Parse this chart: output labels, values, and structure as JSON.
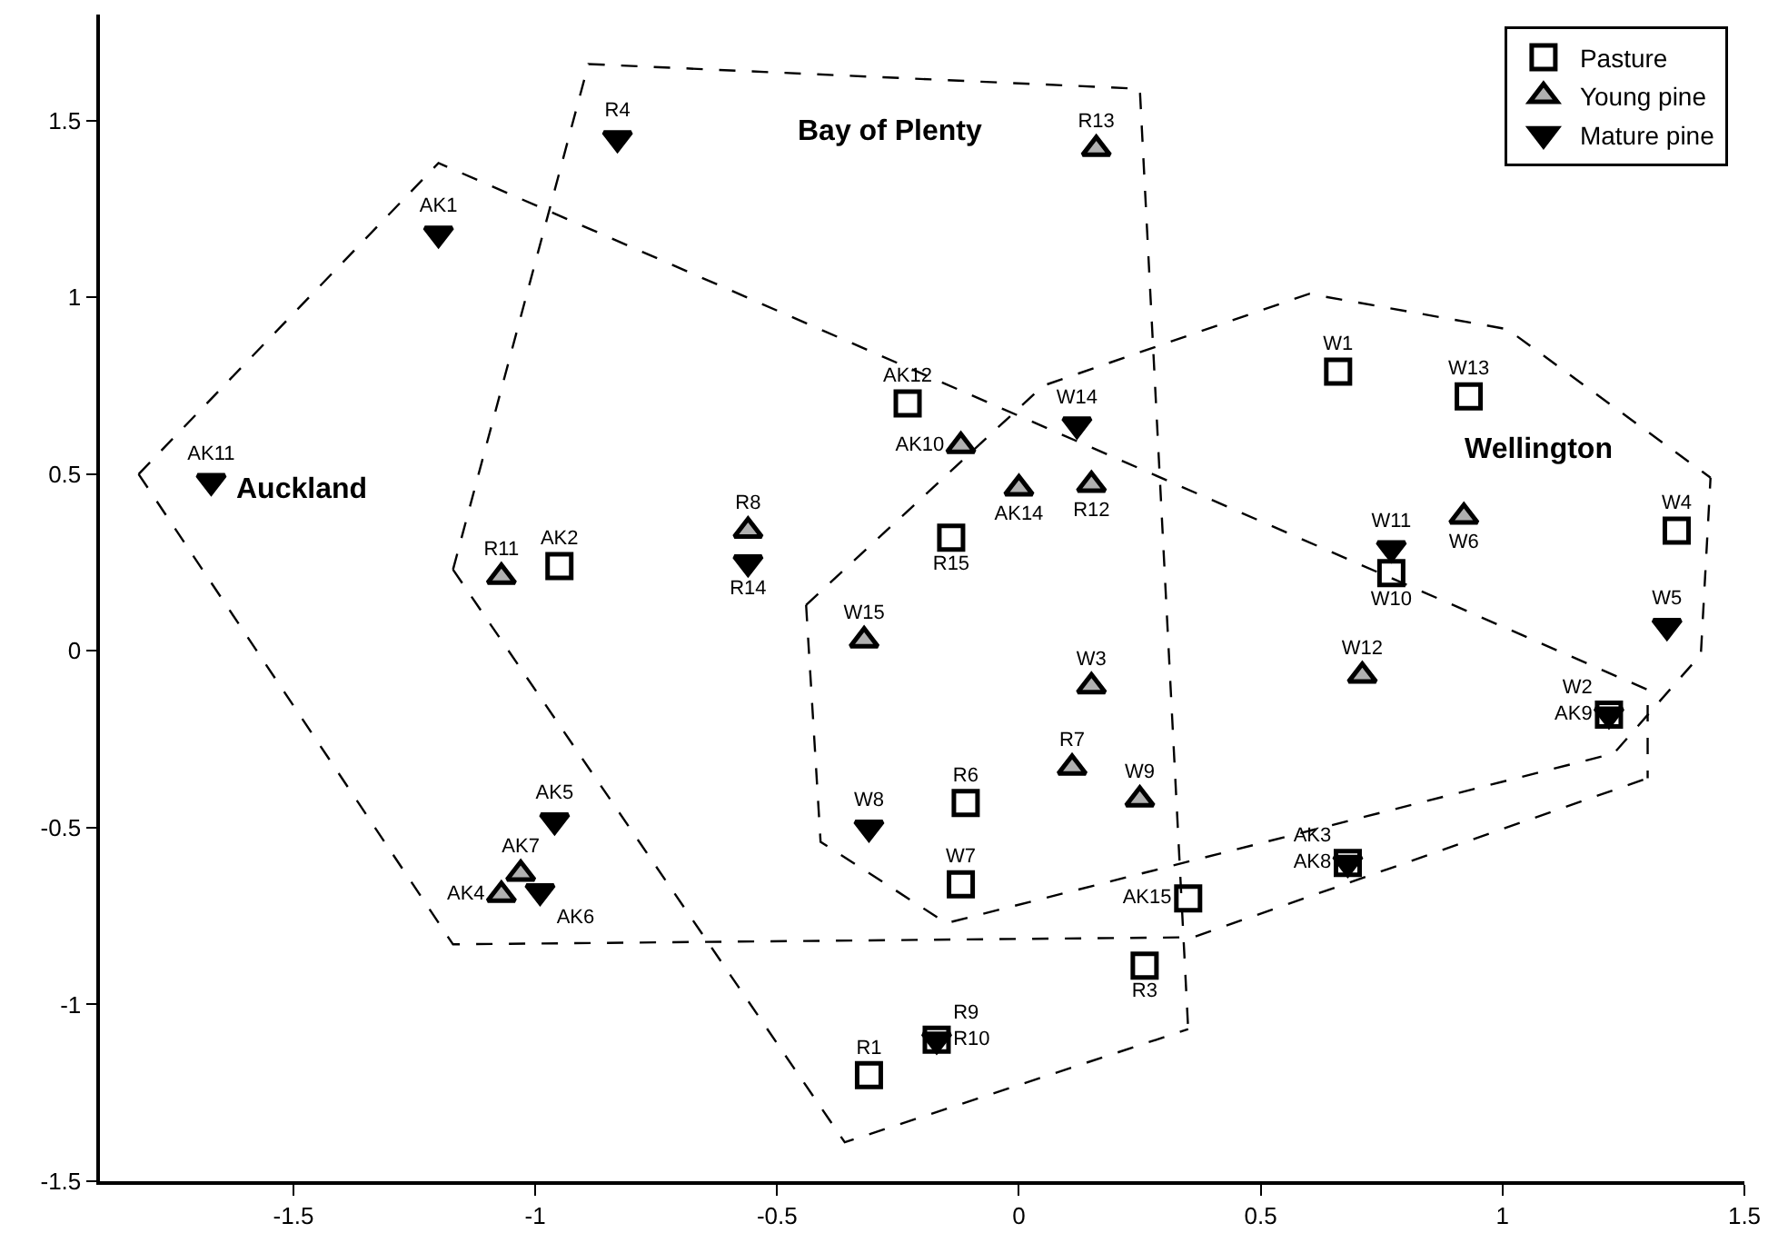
{
  "chart_data": {
    "type": "scatter",
    "xlim": [
      -1.9,
      1.5
    ],
    "ylim": [
      -1.5,
      1.8
    ],
    "xticks": [
      -1.5,
      -1,
      -0.5,
      0,
      0.5,
      1,
      1.5
    ],
    "yticks": [
      -1.5,
      -1,
      -0.5,
      0,
      0.5,
      1,
      1.5
    ],
    "legend": "top right",
    "series": [
      {
        "name": "Pasture",
        "marker": "square",
        "color": "#ffffff",
        "x": [
          -0.23,
          0.66,
          0.93,
          -0.95,
          -0.14,
          0.77,
          1.36,
          -0.11,
          -0.12,
          0.35,
          0.26,
          -0.31,
          1.22,
          0.68,
          -0.17
        ],
        "values": [
          0.7,
          0.79,
          0.72,
          0.24,
          0.32,
          0.22,
          0.34,
          -0.43,
          -0.66,
          -0.7,
          -0.89,
          -1.2,
          -0.18,
          -0.6,
          -1.1
        ],
        "value_labels": [
          "AK12",
          "W1",
          "W13",
          "AK2",
          "R15",
          "W10",
          "W4",
          "R6",
          "W7",
          "AK15",
          "R3",
          "R1",
          "W2",
          "AK3",
          "R9"
        ]
      },
      {
        "name": "Young pine",
        "marker": "triangle",
        "color": "#b0b0b0",
        "x": [
          0.16,
          -0.12,
          0.0,
          0.15,
          -0.56,
          -1.07,
          0.92,
          -0.32,
          0.15,
          0.71,
          0.11,
          0.25,
          -1.03,
          -1.07
        ],
        "values": [
          1.42,
          0.58,
          0.46,
          0.47,
          0.34,
          0.21,
          0.38,
          0.03,
          -0.1,
          -0.07,
          -0.33,
          -0.42,
          -0.63,
          -0.69
        ],
        "value_labels": [
          "R13",
          "AK10",
          "AK14",
          "R12",
          "R8",
          "R11",
          "W6",
          "W15",
          "W3",
          "W12",
          "R7",
          "W9",
          "AK7",
          "AK4"
        ]
      },
      {
        "name": "Mature pine",
        "marker": "triangle-down",
        "color": "#000000",
        "x": [
          -1.2,
          -0.83,
          -1.67,
          -0.56,
          0.12,
          0.77,
          1.34,
          -0.96,
          -0.99,
          -0.31,
          1.22,
          0.68,
          -0.17
        ],
        "values": [
          1.18,
          1.45,
          0.48,
          0.25,
          0.64,
          0.29,
          0.07,
          -0.48,
          -0.68,
          -0.5,
          -0.18,
          -0.6,
          -1.1
        ],
        "value_labels": [
          "AK1",
          "R4",
          "AK11",
          "R14",
          "W14",
          "W11",
          "W5",
          "AK5",
          "AK6",
          "W8",
          "AK9",
          "AK8",
          "R10"
        ]
      },
      {
        "type": "line",
        "line_style": "dashed",
        "color": "#000000",
        "x": [
          -1.82,
          -1.2,
          1.3,
          1.3
        ],
        "values": [
          0.5,
          1.38,
          -0.11,
          -0.36
        ]
      },
      {
        "type": "line",
        "line_style": "dashed",
        "color": "#000000",
        "x": [
          -1.82,
          -1.17,
          0.36,
          1.3
        ],
        "values": [
          0.5,
          -0.83,
          -0.81,
          -0.36
        ]
      },
      {
        "type": "line",
        "line_style": "dashed",
        "color": "#000000",
        "x": [
          -1.17,
          -0.89,
          0.25,
          0.35
        ],
        "values": [
          0.23,
          1.66,
          1.59,
          -1.07
        ]
      },
      {
        "type": "line",
        "line_style": "dashed",
        "color": "#000000",
        "x": [
          -1.17,
          -0.36,
          0.35
        ],
        "values": [
          0.23,
          -1.39,
          -1.07
        ]
      },
      {
        "type": "line",
        "line_style": "dashed",
        "color": "#000000",
        "x": [
          -0.44,
          0.05,
          0.6,
          1.01,
          1.43
        ],
        "values": [
          0.13,
          0.75,
          1.01,
          0.91,
          0.49
        ]
      },
      {
        "type": "line",
        "line_style": "dashed",
        "color": "#000000",
        "x": [
          -0.44,
          -0.41,
          -0.15,
          1.23,
          1.41,
          1.43
        ],
        "values": [
          0.13,
          -0.54,
          -0.77,
          -0.29,
          -0.01,
          0.49
        ]
      }
    ],
    "annotations": [
      "Auckland",
      "Bay of Plenty",
      "Wellington"
    ]
  }
}
